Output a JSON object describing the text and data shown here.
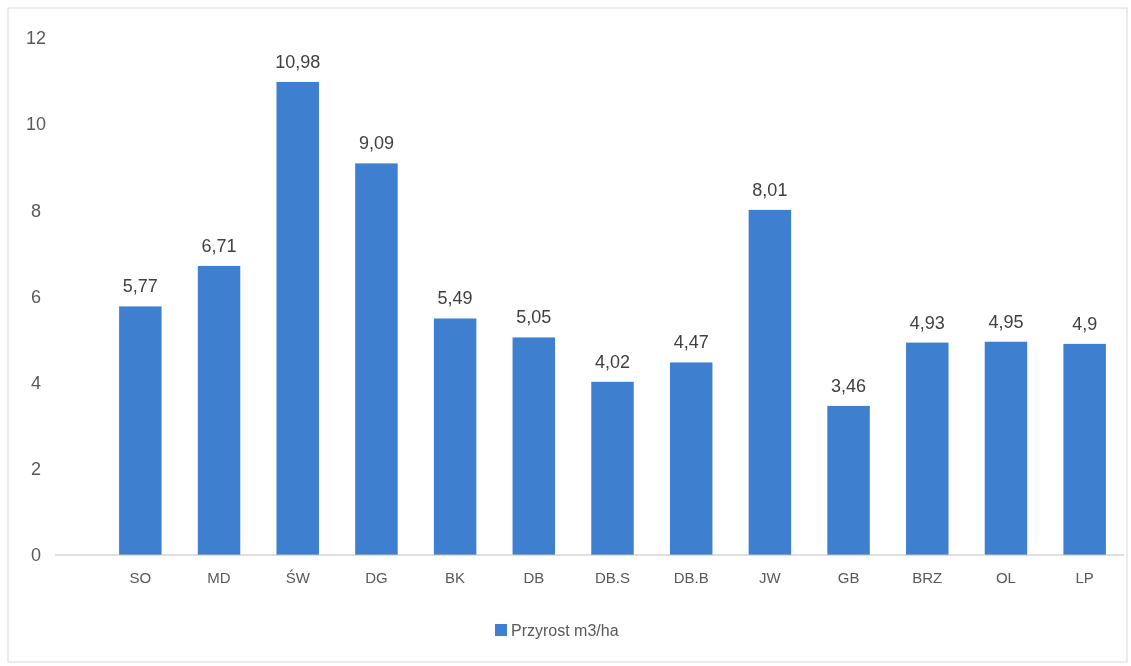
{
  "chart_data": {
    "type": "bar",
    "categories": [
      "SO",
      "MD",
      "ŚW",
      "DG",
      "BK",
      "DB",
      "DB.S",
      "DB.B",
      "JW",
      "GB",
      "BRZ",
      "OL",
      "LP"
    ],
    "series": [
      {
        "name": "Przyrost m3/ha",
        "color": "#3f7fd0",
        "values": [
          5.77,
          6.71,
          10.98,
          9.09,
          5.49,
          5.05,
          4.02,
          4.47,
          8.01,
          3.46,
          4.93,
          4.95,
          4.9
        ]
      }
    ],
    "value_labels": [
      "5,77",
      "6,71",
      "10,98",
      "9,09",
      "5,49",
      "5,05",
      "4,02",
      "4,47",
      "8,01",
      "3,46",
      "4,93",
      "4,95",
      "4,9"
    ],
    "ylim": [
      0,
      12
    ],
    "yticks": [
      0,
      2,
      4,
      6,
      8,
      10,
      12
    ],
    "legend": "bottom"
  }
}
